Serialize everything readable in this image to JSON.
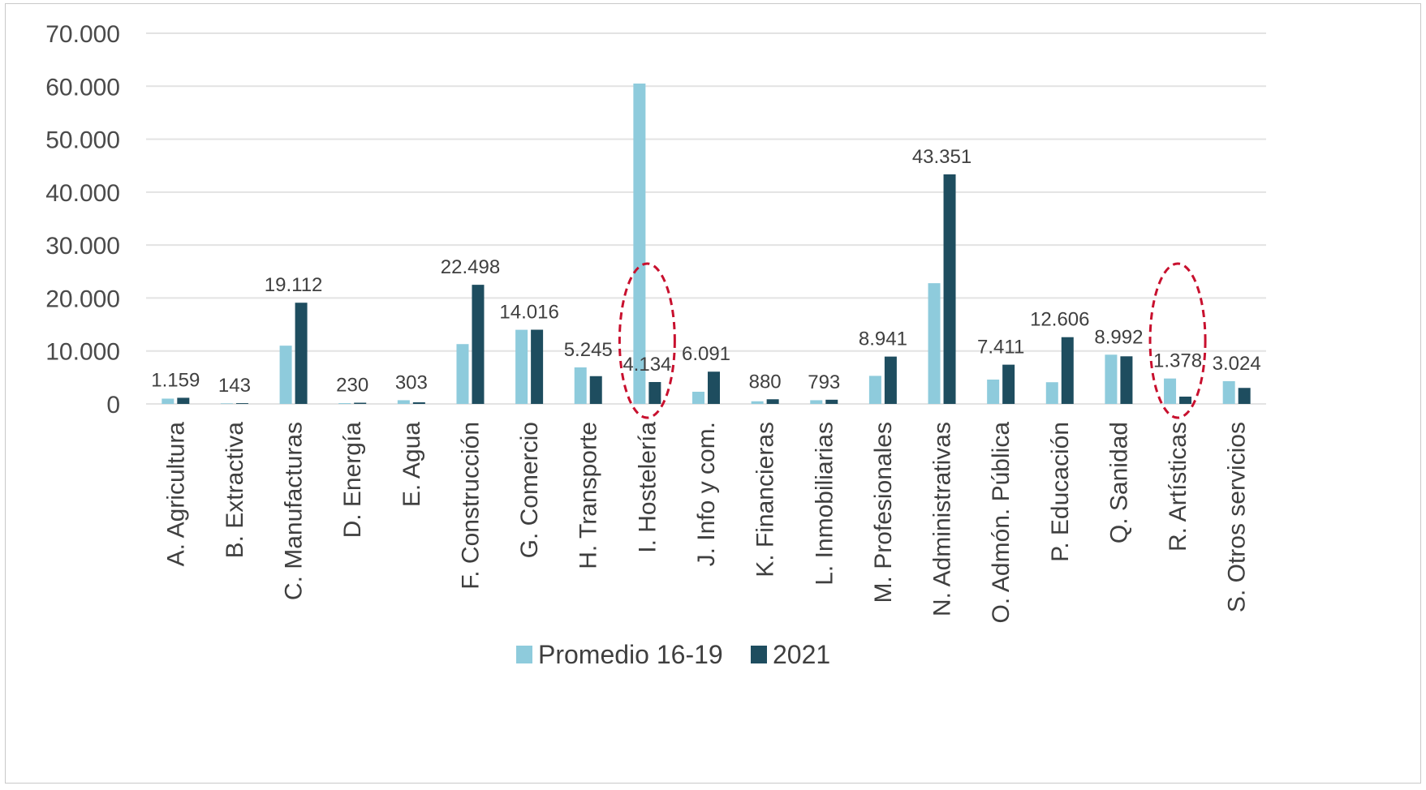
{
  "chart_data": {
    "type": "bar",
    "title": "",
    "xlabel": "",
    "ylabel": "",
    "ylim": [
      0,
      70000
    ],
    "y_ticks": [
      0,
      10000,
      20000,
      30000,
      40000,
      50000,
      60000,
      70000
    ],
    "y_tick_labels": [
      "0",
      "10.000",
      "20.000",
      "30.000",
      "40.000",
      "50.000",
      "60.000",
      "70.000"
    ],
    "grid": true,
    "legend_position": "bottom",
    "categories": [
      "A. Agricultura",
      "B. Extractiva",
      "C. Manufacturas",
      "D. Energía",
      "E. Agua",
      "F. Construcción",
      "G. Comercio",
      "H. Transporte",
      "I. Hostelería",
      "J. Info y com.",
      "K. Financieras",
      "L. Inmobiliarias",
      "M. Profesionales",
      "N. Administrativas",
      "O. Admón. Pública",
      "P. Educación",
      "Q. Sanidad",
      "R. Artísticas",
      "S. Otros servicios"
    ],
    "series": [
      {
        "name": "Promedio 16-19",
        "color": "#8ecbdc",
        "values": [
          1000,
          100,
          11000,
          150,
          700,
          11300,
          14000,
          6900,
          60500,
          2300,
          500,
          700,
          5300,
          22800,
          4600,
          4100,
          9300,
          4800,
          4300
        ]
      },
      {
        "name": "2021",
        "color": "#1e4d5f",
        "values": [
          1159,
          143,
          19112,
          230,
          303,
          22498,
          14016,
          5245,
          4134,
          6091,
          880,
          793,
          8941,
          43351,
          7411,
          12606,
          8992,
          1378,
          3024
        ]
      }
    ],
    "data_labels": [
      "1.159",
      "143",
      "19.112",
      "230",
      "303",
      "22.498",
      "14.016",
      "5.245",
      "4.134",
      "6.091",
      "880",
      "793",
      "8.941",
      "43.351",
      "7.411",
      "12.606",
      "8.992",
      "1.378",
      "3.024"
    ],
    "highlighted_categories": [
      "I. Hostelería",
      "R. Artísticas"
    ],
    "highlight_color": "#c8102e",
    "gridline_color": "#e3e3e3"
  }
}
